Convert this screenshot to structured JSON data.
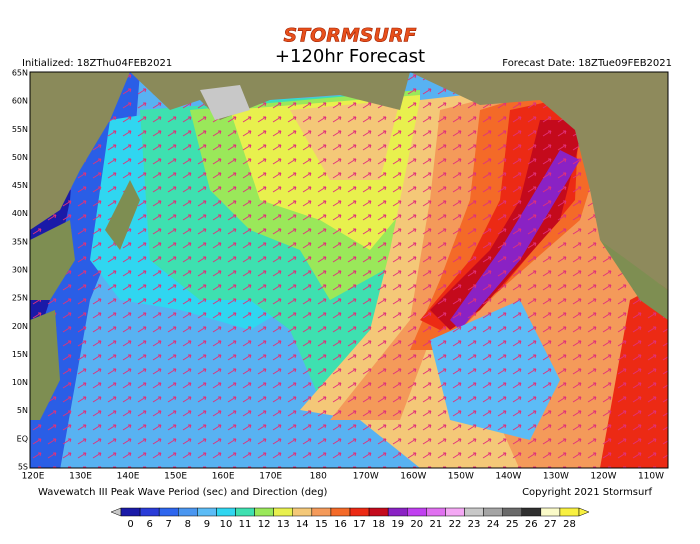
{
  "header": {
    "brand": "STORMSURF",
    "title": "+120hr Forecast",
    "initialized": "Initialized: 18ZThu04FEB2021",
    "forecast_date": "Forecast Date: 18ZTue09FEB2021"
  },
  "map": {
    "lat_labels": [
      "65N",
      "60N",
      "55N",
      "50N",
      "45N",
      "40N",
      "35N",
      "30N",
      "25N",
      "20N",
      "15N",
      "10N",
      "5N",
      "EQ",
      "5S"
    ],
    "lon_labels": [
      "120E",
      "130E",
      "140E",
      "150E",
      "160E",
      "170E",
      "180",
      "170W",
      "160W",
      "150W",
      "140W",
      "130W",
      "120W",
      "110W"
    ]
  },
  "footer": {
    "description": "Wavewatch III Peak Wave Period (sec) and Direction (deg)",
    "copyright": "Copyright 2021 Stormsurf"
  },
  "legend": {
    "labels": [
      "0",
      "6",
      "7",
      "8",
      "9",
      "10",
      "11",
      "12",
      "13",
      "14",
      "15",
      "16",
      "17",
      "18",
      "19",
      "20",
      "21",
      "22",
      "23",
      "24",
      "25",
      "26",
      "27",
      "28"
    ],
    "colors": [
      "#1a1aa8",
      "#2a3cd8",
      "#2e66ee",
      "#4a96f0",
      "#5cbcf6",
      "#30d6f0",
      "#3ee0b0",
      "#9ae85a",
      "#e8f04e",
      "#f4c878",
      "#f49a5a",
      "#f46a28",
      "#ec2a14",
      "#c40a1c",
      "#8a22c4",
      "#c040f0",
      "#e070f0",
      "#f4a8f4",
      "#c8c8c8",
      "#a4a4a4",
      "#6a6a6a",
      "#303030",
      "#fafac8",
      "#f8f040"
    ]
  }
}
